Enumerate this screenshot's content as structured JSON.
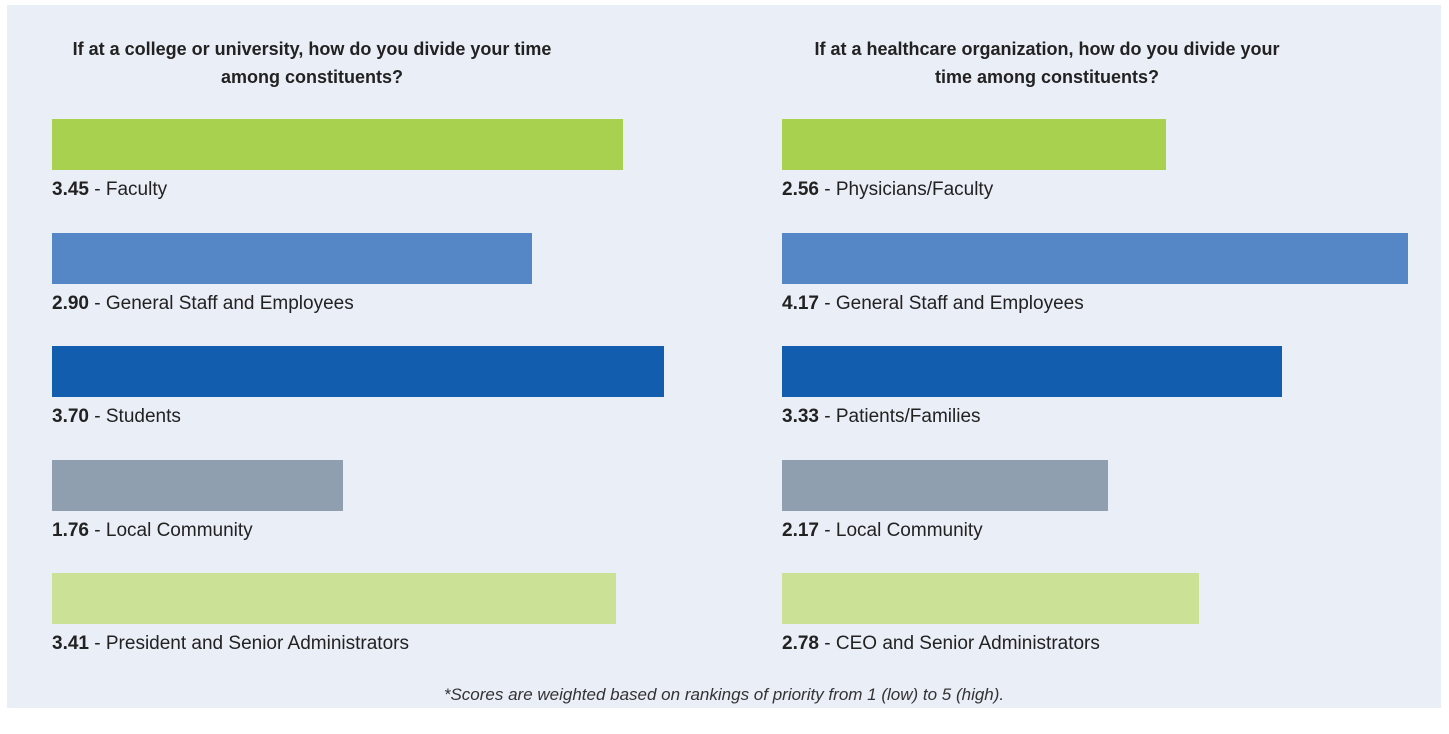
{
  "chart_data": [
    {
      "type": "bar",
      "orientation": "horizontal",
      "title": "If at a college or university, how do you divide your time among constituents?",
      "categories": [
        "Faculty",
        "General Staff and Employees",
        "Students",
        "Local Community",
        "President and Senior Administrators"
      ],
      "values": [
        3.45,
        2.9,
        3.7,
        1.76,
        3.41
      ],
      "value_labels": [
        "3.45",
        "2.90",
        "3.70",
        "1.76",
        "3.41"
      ],
      "colors": [
        "#a8d14f",
        "#5587c6",
        "#135daf",
        "#8f9fb0",
        "#cbe196"
      ],
      "label_separator": "-",
      "xlim": [
        0,
        4
      ]
    },
    {
      "type": "bar",
      "orientation": "horizontal",
      "title": "If at a healthcare organization, how do you divide your time among constituents?",
      "categories": [
        "Physicians/Faculty",
        "General Staff and Employees",
        "Patients/Families",
        "Local Community",
        "CEO and Senior Administrators"
      ],
      "values": [
        2.56,
        4.17,
        3.33,
        2.17,
        2.78
      ],
      "value_labels": [
        "2.56",
        "4.17",
        "3.33",
        "2.17",
        "2.78"
      ],
      "colors": [
        "#a8d14f",
        "#5587c6",
        "#135daf",
        "#8f9fb0",
        "#cbe196"
      ],
      "label_separator": "-",
      "xlim": [
        0,
        4.2
      ]
    }
  ],
  "footnote": "*Scores are weighted based on rankings of priority from 1 (low) to 5 (high)."
}
